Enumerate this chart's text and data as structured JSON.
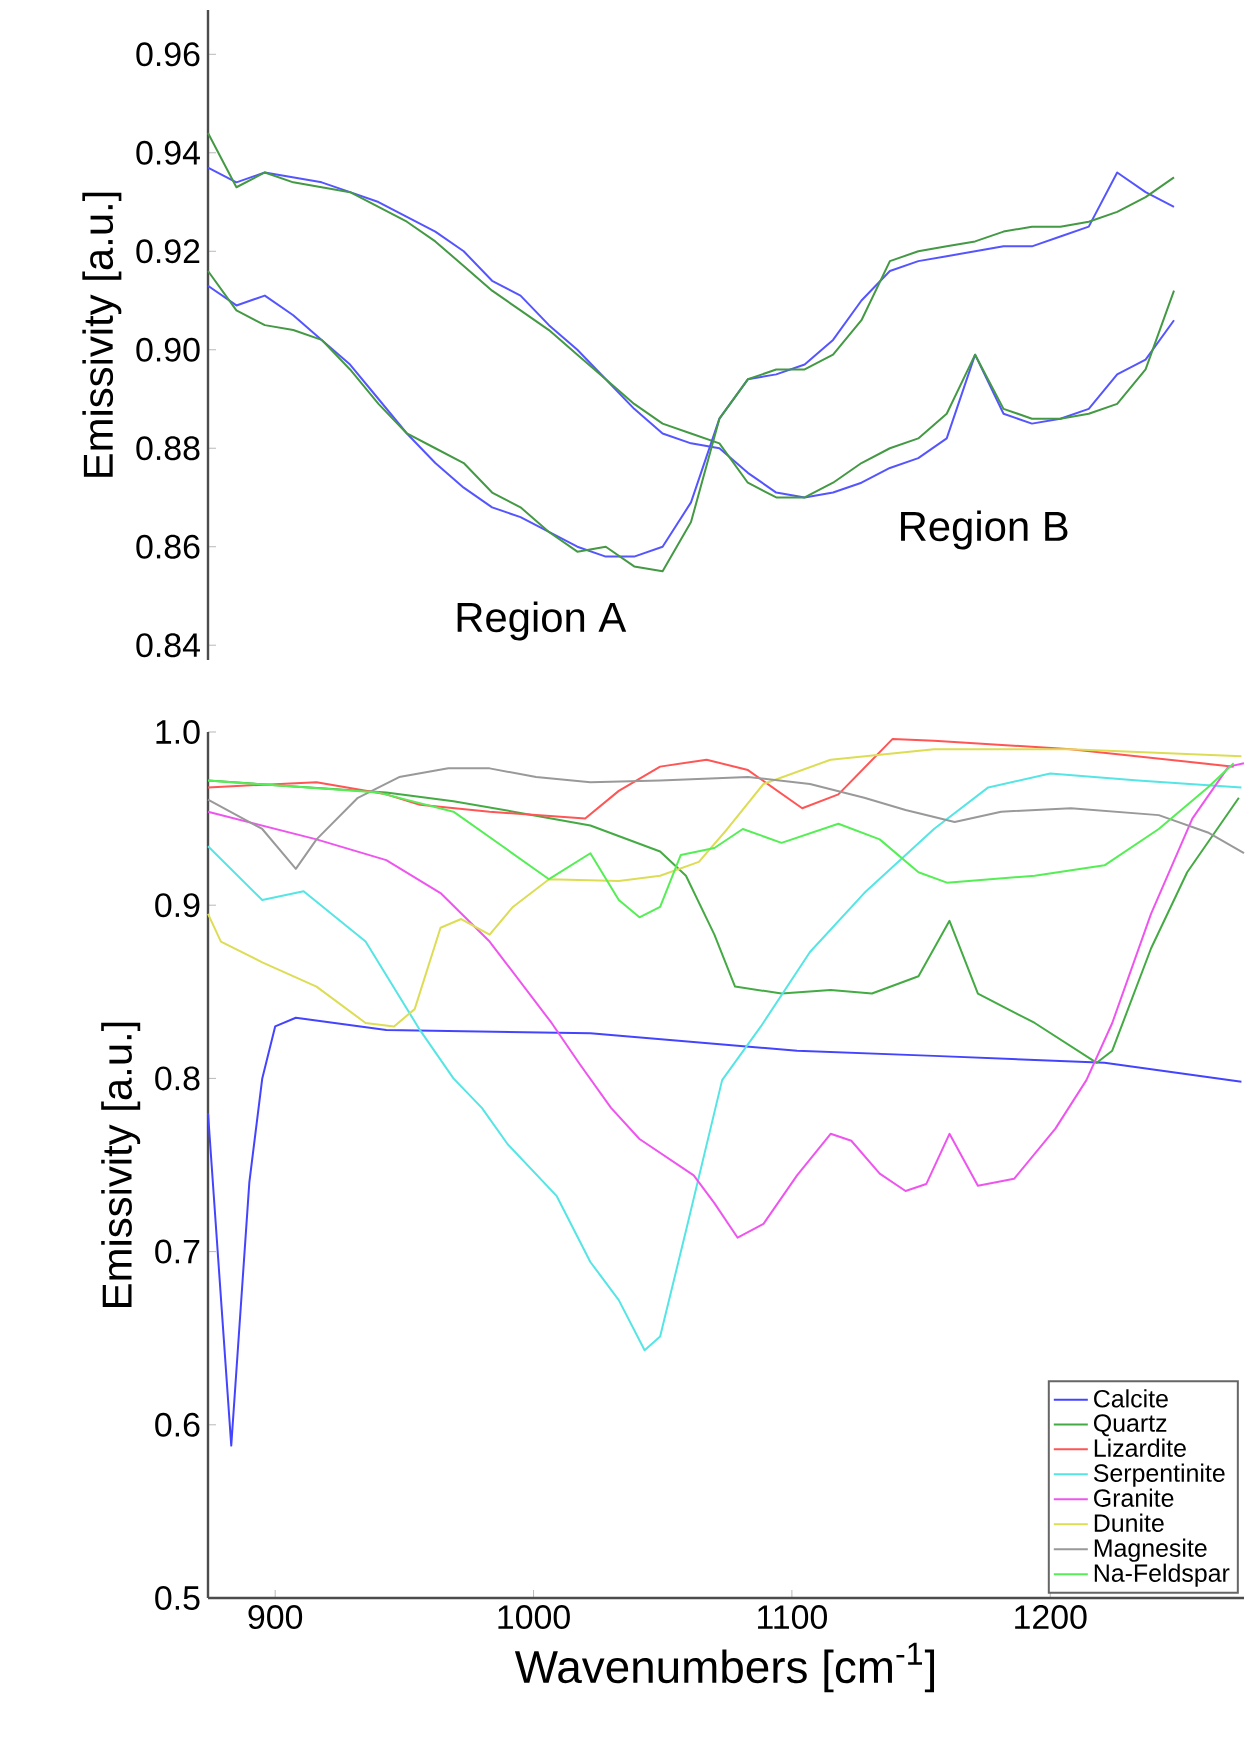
{
  "chart_data": [
    {
      "type": "line",
      "ylabel": "Emissivity [a.u.]",
      "ylim": [
        0.837,
        0.969
      ],
      "yticks": [
        0.84,
        0.86,
        0.88,
        {
          "value": 0.9,
          "label": "0.90"
        },
        0.92,
        0.94,
        0.96
      ],
      "tick_labels": "y",
      "categories": [
        null,
        null,
        null,
        null,
        null,
        null,
        null,
        null,
        null,
        null,
        null,
        null,
        null,
        null,
        null,
        null,
        null,
        null,
        null,
        null,
        null,
        null,
        null,
        null,
        null,
        null,
        null,
        null,
        null,
        null,
        null,
        null,
        null,
        null,
        null
      ],
      "annotations": [
        "Region A",
        "Region B"
      ],
      "series": [
        {
          "color": "#5555ff",
          "values": [
            0.937,
            0.934,
            0.936,
            0.935,
            0.934,
            0.932,
            0.93,
            0.927,
            0.924,
            0.92,
            0.914,
            0.911,
            0.905,
            0.9,
            0.894,
            0.888,
            0.883,
            0.881,
            0.88,
            0.875,
            0.871,
            0.87,
            0.871,
            0.873,
            0.876,
            0.878,
            0.882,
            0.899,
            0.887,
            0.885,
            0.886,
            0.888,
            0.895,
            0.898,
            0.906
          ]
        },
        {
          "color": "#449944",
          "values": [
            0.944,
            0.933,
            0.936,
            0.934,
            0.933,
            0.932,
            0.929,
            0.926,
            0.922,
            0.917,
            0.912,
            0.908,
            0.904,
            0.899,
            0.894,
            0.889,
            0.885,
            0.883,
            0.881,
            0.873,
            0.87,
            0.87,
            0.873,
            0.877,
            0.88,
            0.882,
            0.887,
            0.899,
            0.888,
            0.886,
            0.886,
            0.887,
            0.889,
            0.896,
            0.912
          ]
        },
        {
          "color": "#5555ff",
          "values": [
            0.913,
            0.909,
            0.911,
            0.907,
            0.902,
            0.897,
            0.89,
            0.883,
            0.877,
            0.872,
            0.868,
            0.866,
            0.863,
            0.86,
            0.858,
            0.858,
            0.86,
            0.869,
            0.886,
            0.894,
            0.895,
            0.897,
            0.902,
            0.91,
            0.916,
            0.918,
            0.919,
            0.92,
            0.921,
            0.921,
            0.923,
            0.925,
            0.936,
            0.932,
            0.929
          ]
        },
        {
          "color": "#449944",
          "values": [
            0.916,
            0.908,
            0.905,
            0.904,
            0.902,
            0.896,
            0.889,
            0.883,
            0.88,
            0.877,
            0.871,
            0.868,
            0.863,
            0.859,
            0.86,
            0.856,
            0.855,
            0.865,
            0.886,
            0.894,
            0.896,
            0.896,
            0.899,
            0.906,
            0.918,
            0.92,
            0.921,
            0.922,
            0.924,
            0.925,
            0.925,
            0.926,
            0.928,
            0.931,
            0.935
          ]
        }
      ]
    },
    {
      "type": "line",
      "xlabel": "Wavenumbers [cm$^{-1}$]",
      "ylabel": "Emissivity [a.u.]",
      "xlim": [
        874,
        1275
      ],
      "ylim": [
        0.5,
        1.0
      ],
      "xticks": [
        900,
        1000,
        1100,
        1200
      ],
      "yticks": [
        0.5,
        0.6,
        0.7,
        0.8,
        0.9,
        {
          "value": 1.0,
          "label": "1.0"
        }
      ],
      "legend": "bottom right",
      "series": [
        {
          "name": "Calcite",
          "color": "#4444ff",
          "x": [
            874,
            883,
            890,
            895,
            900,
            908,
            943,
            1022,
            1102,
            1155,
            1221,
            1274
          ],
          "values": [
            0.78,
            0.588,
            0.74,
            0.8,
            0.83,
            0.835,
            0.828,
            0.826,
            0.816,
            0.813,
            0.809,
            0.798
          ]
        },
        {
          "name": "Quartz",
          "color": "#44aa44",
          "x": [
            874,
            903,
            943,
            969,
            996,
            1022,
            1049,
            1059,
            1070,
            1078,
            1096,
            1115,
            1131,
            1149,
            1161,
            1172,
            1194,
            1218,
            1224,
            1239,
            1253,
            1273
          ],
          "values": [
            0.972,
            0.969,
            0.965,
            0.96,
            0.953,
            0.946,
            0.931,
            0.917,
            0.883,
            0.853,
            0.849,
            0.851,
            0.849,
            0.859,
            0.891,
            0.849,
            0.832,
            0.809,
            0.816,
            0.875,
            0.919,
            0.962
          ]
        },
        {
          "name": "Lizardite",
          "color": "#ff5555",
          "x": [
            874,
            916,
            943,
            956,
            983,
            1020,
            1033,
            1049,
            1067,
            1083,
            1104,
            1118,
            1139,
            1155,
            1208,
            1271
          ],
          "values": [
            0.968,
            0.971,
            0.964,
            0.958,
            0.954,
            0.95,
            0.966,
            0.98,
            0.984,
            0.978,
            0.956,
            0.964,
            0.996,
            0.995,
            0.99,
            0.98
          ]
        },
        {
          "name": "Serpentinite",
          "color": "#55e5e5",
          "x": [
            874,
            895,
            911,
            935,
            956,
            969,
            980,
            990,
            1009,
            1022,
            1033,
            1043,
            1049,
            1059,
            1073,
            1088,
            1107,
            1128,
            1155,
            1176,
            1200,
            1234,
            1274
          ],
          "values": [
            0.934,
            0.903,
            0.908,
            0.879,
            0.828,
            0.8,
            0.783,
            0.762,
            0.732,
            0.694,
            0.672,
            0.643,
            0.651,
            0.712,
            0.799,
            0.83,
            0.873,
            0.907,
            0.944,
            0.968,
            0.976,
            0.972,
            0.968
          ]
        },
        {
          "name": "Granite",
          "color": "#ee55ee",
          "x": [
            874,
            916,
            943,
            964,
            983,
            1007,
            1018,
            1030,
            1041,
            1062,
            1070,
            1079,
            1089,
            1102,
            1115,
            1123,
            1134,
            1144,
            1152,
            1161,
            1172,
            1186,
            1202,
            1214,
            1224,
            1239,
            1255,
            1269,
            1275
          ],
          "values": [
            0.954,
            0.938,
            0.926,
            0.907,
            0.879,
            0.832,
            0.808,
            0.783,
            0.765,
            0.744,
            0.728,
            0.708,
            0.716,
            0.744,
            0.768,
            0.764,
            0.745,
            0.735,
            0.739,
            0.768,
            0.738,
            0.742,
            0.771,
            0.799,
            0.832,
            0.895,
            0.95,
            0.98,
            0.982
          ]
        },
        {
          "name": "Dunite",
          "color": "#dddd55",
          "x": [
            874,
            879,
            895,
            916,
            935,
            946,
            954,
            964,
            972,
            983,
            992,
            1006,
            1033,
            1049,
            1064,
            1075,
            1089,
            1115,
            1155,
            1208,
            1274
          ],
          "values": [
            0.895,
            0.879,
            0.867,
            0.853,
            0.832,
            0.83,
            0.84,
            0.887,
            0.892,
            0.883,
            0.899,
            0.915,
            0.914,
            0.917,
            0.925,
            0.944,
            0.97,
            0.984,
            0.99,
            0.99,
            0.986
          ]
        },
        {
          "name": "Magnesite",
          "color": "#999999",
          "x": [
            874,
            895,
            908,
            916,
            932,
            948,
            967,
            983,
            1001,
            1022,
            1049,
            1083,
            1107,
            1128,
            1144,
            1163,
            1181,
            1208,
            1242,
            1261,
            1275
          ],
          "values": [
            0.961,
            0.944,
            0.921,
            0.938,
            0.962,
            0.974,
            0.979,
            0.979,
            0.974,
            0.971,
            0.972,
            0.974,
            0.97,
            0.962,
            0.955,
            0.948,
            0.954,
            0.956,
            0.952,
            0.942,
            0.93
          ]
        },
        {
          "name": "Na-Feldspar",
          "color": "#55ee55",
          "x": [
            874,
            940,
            969,
            988,
            1006,
            1022,
            1033,
            1041,
            1049,
            1057,
            1070,
            1081,
            1096,
            1118,
            1134,
            1149,
            1160,
            1194,
            1221,
            1242,
            1261,
            1271
          ],
          "values": [
            0.972,
            0.965,
            0.954,
            0.934,
            0.915,
            0.93,
            0.903,
            0.893,
            0.899,
            0.929,
            0.933,
            0.944,
            0.936,
            0.947,
            0.938,
            0.919,
            0.913,
            0.917,
            0.923,
            0.944,
            0.968,
            0.982
          ]
        }
      ]
    }
  ]
}
